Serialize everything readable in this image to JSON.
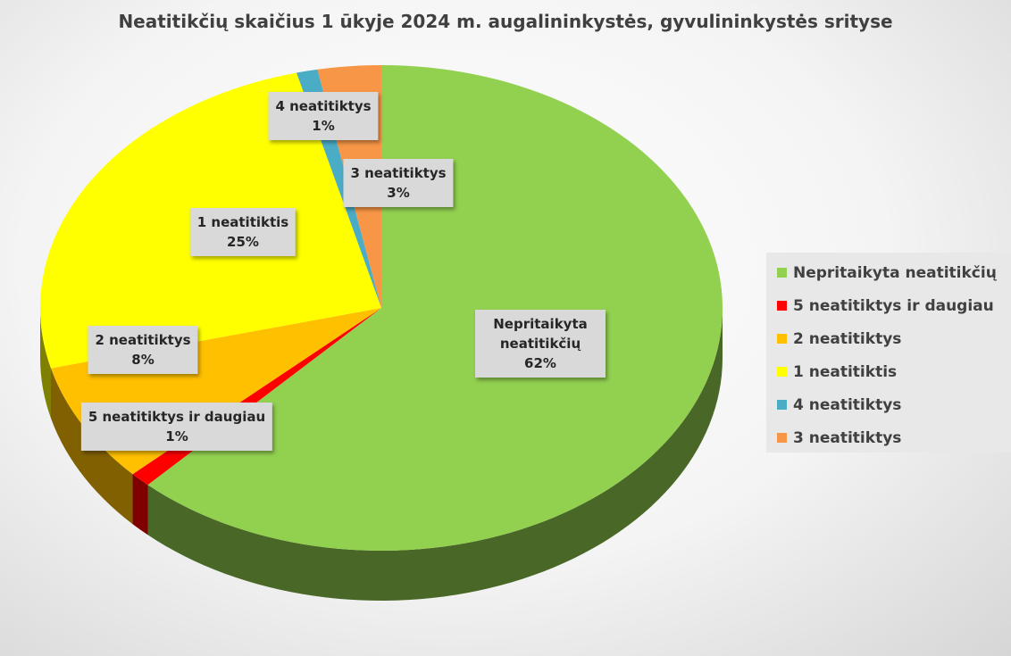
{
  "chart_data": {
    "type": "pie3d",
    "title": "Neatitikčių skaičius 1 ūkyje 2024 m. augalininkystės, gyvulininkystės srityse",
    "categories": [
      "Nepritaikyta neatitikčių",
      "5 neatitiktys ir daugiau",
      "2 neatitiktys",
      "1 neatitiktis",
      "4 neatitiktys",
      "3 neatitiktys"
    ],
    "values": [
      62,
      1,
      8,
      25,
      1,
      3
    ],
    "value_labels": [
      "62%",
      "1%",
      "8%",
      "25%",
      "1%",
      "3%"
    ],
    "colors": [
      "#92d050",
      "#ff0000",
      "#ffc000",
      "#ffff00",
      "#4bacc6",
      "#f79646"
    ],
    "legend": "right"
  }
}
